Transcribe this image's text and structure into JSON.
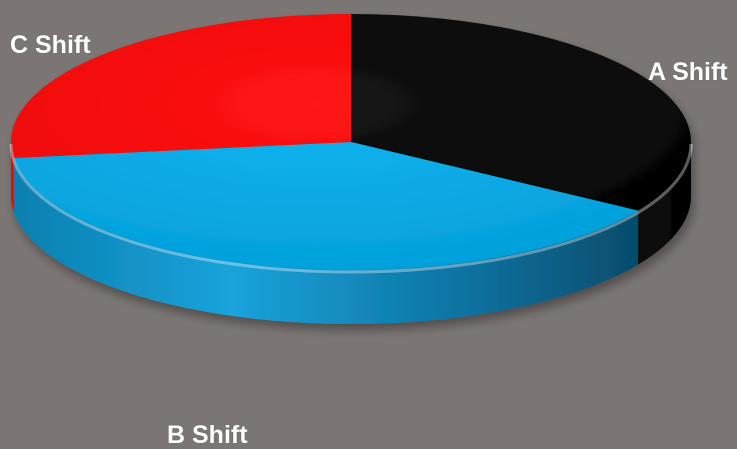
{
  "chart_data": {
    "type": "pie",
    "title": "",
    "legend": false,
    "slices": [
      {
        "label": "A Shift",
        "value": 34,
        "color": "#000000"
      },
      {
        "label": "B Shift",
        "value": 39,
        "color": "#00aeef"
      },
      {
        "label": "C Shift",
        "value": 27,
        "color": "#ff0000"
      }
    ]
  }
}
